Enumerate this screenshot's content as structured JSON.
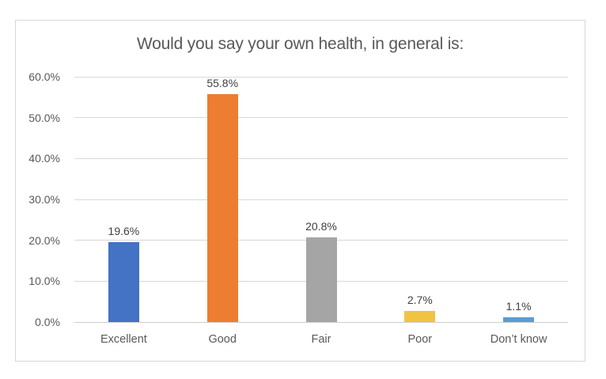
{
  "chart_data": {
    "type": "bar",
    "title": "Would you say your own health, in general is:",
    "categories": [
      "Excellent",
      "Good",
      "Fair",
      "Poor",
      "Don’t know"
    ],
    "values": [
      19.6,
      55.8,
      20.8,
      2.7,
      1.1
    ],
    "data_labels": [
      "19.6%",
      "55.8%",
      "20.8%",
      "2.7%",
      "1.1%"
    ],
    "bar_colors": [
      "#4472C4",
      "#ED7D31",
      "#A5A5A5",
      "#F2C342",
      "#5B9BD5"
    ],
    "y_ticks": [
      "0.0%",
      "10.0%",
      "20.0%",
      "30.0%",
      "40.0%",
      "50.0%",
      "60.0%"
    ],
    "ylim": [
      0,
      60
    ],
    "xlabel": "",
    "ylabel": "",
    "grid": true,
    "legend": "none",
    "colors": {
      "title_text": "#595959",
      "axis_text": "#595959",
      "data_label_text": "#404040",
      "gridline": "#D9D9D9",
      "chart_border": "#D7D7D7",
      "background": "#FFFFFF"
    }
  }
}
